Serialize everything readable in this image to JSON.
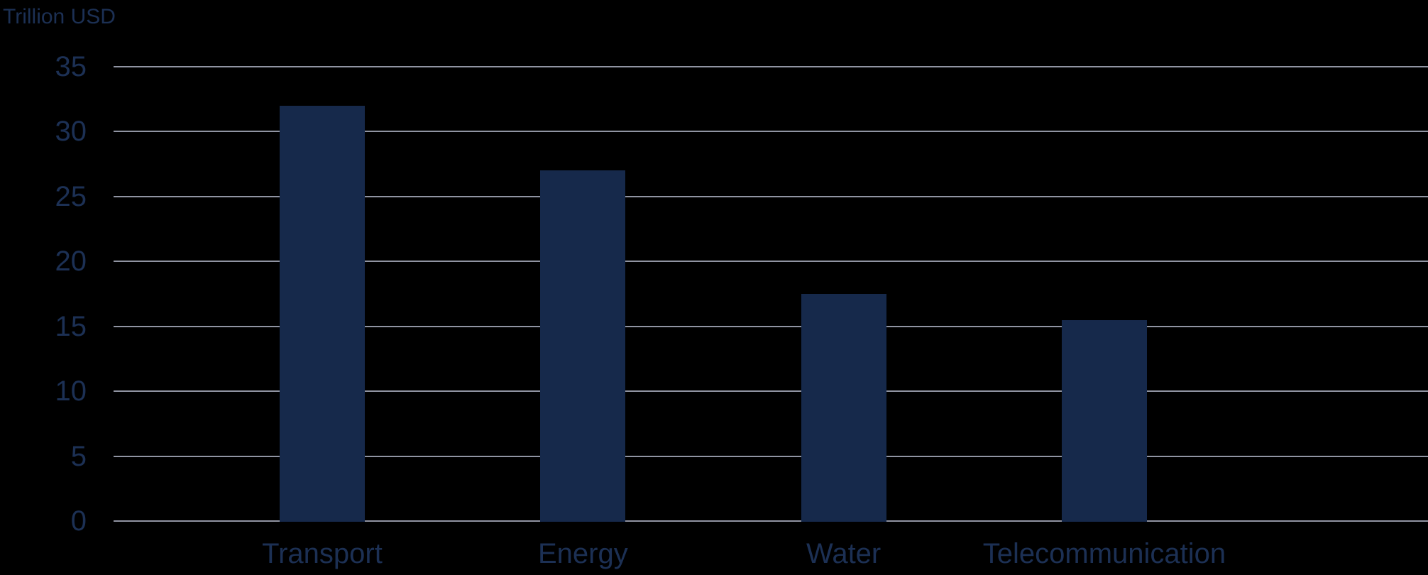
{
  "chart_data": {
    "type": "bar",
    "title": "",
    "ylabel": "Trillion USD",
    "xlabel": "",
    "categories": [
      "Transport",
      "Energy",
      "Water",
      "Telecommunication"
    ],
    "values": [
      32,
      27,
      17.5,
      15.5
    ],
    "yticks": [
      0,
      5,
      10,
      15,
      20,
      25,
      30,
      35
    ],
    "ylim": [
      0,
      35
    ],
    "grid": "horizontal",
    "legend": "none"
  },
  "colors": {
    "background": "#000000",
    "bar": "#16294B",
    "text": "#1C3054",
    "gridline": "#9094A2"
  }
}
